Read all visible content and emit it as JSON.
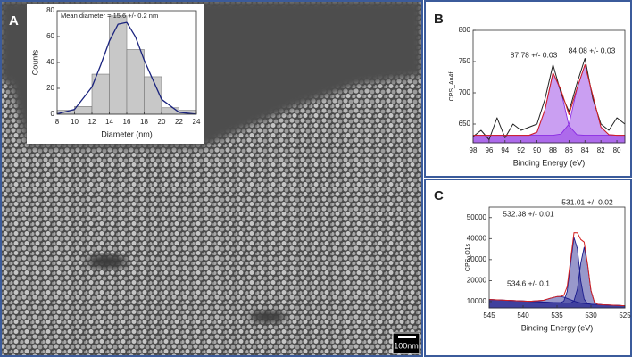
{
  "panel_labels": [
    "A",
    "B",
    "C"
  ],
  "scale_bar": "100nm",
  "chart_data": [
    {
      "type": "histogram",
      "annotations": [
        "Mean diameter = 15.6 +/- 0.2 nm"
      ],
      "xlabel": "Diameter (nm)",
      "ylabel": "Counts",
      "bins": [
        8,
        10,
        12,
        14,
        16,
        18,
        20,
        22,
        24
      ],
      "values": [
        3,
        6,
        31,
        76,
        50,
        29,
        5,
        3
      ],
      "color": "#c8c8c8",
      "fit": {
        "color": "#1a237e",
        "x": [
          8,
          10,
          12,
          13,
          14,
          15,
          16,
          17,
          18,
          20,
          22,
          24
        ],
        "values": [
          0.3,
          3.7,
          21,
          38,
          56.5,
          69.6,
          71,
          59.8,
          41.8,
          11.5,
          1.5,
          0.1
        ]
      },
      "xlim": [
        8,
        24
      ],
      "xticks": [
        8,
        10,
        12,
        14,
        16,
        18,
        20,
        22,
        24
      ],
      "ylim": [
        0,
        80
      ],
      "yticks": [
        0,
        20,
        40,
        60,
        80
      ]
    },
    {
      "type": "line",
      "annotations": [
        "87.78 +/- 0.03",
        "84.08 +/- 0.03"
      ],
      "xlabel": "Binding Energy (eV)",
      "ylabel": "CPS_Au4f",
      "x": [
        98,
        97,
        96,
        95,
        94,
        93,
        92,
        91,
        90,
        89,
        88,
        87,
        86,
        85,
        84,
        83,
        82,
        81,
        80,
        79
      ],
      "series": [
        {
          "color": "#8a2be2",
          "fill": true,
          "values": [
            632,
            632,
            632,
            632,
            632,
            632,
            632,
            632,
            637,
            673,
            732,
            703,
            647,
            633,
            632,
            632,
            632,
            632,
            632,
            632
          ]
        },
        {
          "color": "#8a2be2",
          "fill": true,
          "values": [
            632,
            632,
            632,
            632,
            632,
            632,
            632,
            632,
            632,
            632,
            632,
            634,
            650,
            706,
            745,
            695,
            645,
            633,
            632,
            632
          ]
        },
        {
          "color": "#222222",
          "fill": false,
          "values": [
            630,
            640,
            625,
            660,
            628,
            650,
            640,
            645,
            650,
            690,
            745,
            700,
            670,
            715,
            755,
            690,
            650,
            640,
            660,
            650
          ]
        },
        {
          "color": "#d42020",
          "fill": false,
          "values": [
            632,
            632,
            632,
            632,
            632,
            632,
            632,
            632,
            637,
            673,
            732,
            705,
            665,
            707,
            745,
            695,
            645,
            633,
            632,
            632
          ]
        }
      ],
      "xlim": [
        98,
        79
      ],
      "xticks": [
        98,
        96,
        94,
        92,
        90,
        88,
        86,
        84,
        82,
        80
      ],
      "ylim": [
        620,
        800
      ],
      "yticks": [
        650,
        700,
        750,
        800
      ]
    },
    {
      "type": "line",
      "annotations": [
        "531.01 +/- 0.02",
        "532.38 +/- 0.01",
        "534.6 +/- 0.1"
      ],
      "xlabel": "Binding Energy (eV)",
      "ylabel": "CPS_O1s",
      "x": [
        545,
        543,
        541,
        539,
        537,
        536,
        535,
        534.5,
        534,
        533.5,
        533,
        532.5,
        532,
        531.5,
        531,
        530.5,
        530,
        529.5,
        529,
        528,
        527,
        525
      ],
      "series": [
        {
          "color": "#1a1a8c",
          "fill": true,
          "values": [
            11000,
            10700,
            10400,
            10100,
            9800,
            9650,
            9500,
            9490,
            10180,
            14875,
            28100,
            40495,
            35250,
            19875,
            11170,
            9065,
            8750,
            8675,
            8600,
            8450,
            8300,
            8000
          ]
        },
        {
          "color": "#1a1a8c",
          "fill": true,
          "values": [
            11000,
            10700,
            10400,
            10100,
            9800,
            9650,
            9500,
            9425,
            9350,
            9275,
            9310,
            10365,
            15950,
            28325,
            35900,
            27625,
            15280,
            9815,
            8700,
            8450,
            8300,
            8000
          ]
        },
        {
          "color": "#1a1a8c",
          "fill": true,
          "values": [
            11000,
            10700,
            10400,
            10140,
            10630,
            11590,
            12400,
            12425,
            12120,
            11565,
            10900,
            10255,
            9720,
            9325,
            9070,
            8905,
            8780,
            8675,
            8600,
            8450,
            8300,
            8000
          ]
        },
        {
          "color": "#d42020",
          "fill": false,
          "values": [
            11000,
            10700,
            10400,
            10140,
            10630,
            11590,
            12400,
            12490,
            12950,
            17165,
            29910,
            42865,
            42820,
            39575,
            38340,
            27945,
            15310,
            9815,
            8700,
            8450,
            8300,
            8000
          ]
        }
      ],
      "xlim": [
        545,
        525
      ],
      "xticks": [
        545,
        540,
        535,
        530,
        525
      ],
      "ylim": [
        7000,
        55000
      ],
      "yticks": [
        10000,
        20000,
        30000,
        40000,
        50000
      ]
    }
  ]
}
